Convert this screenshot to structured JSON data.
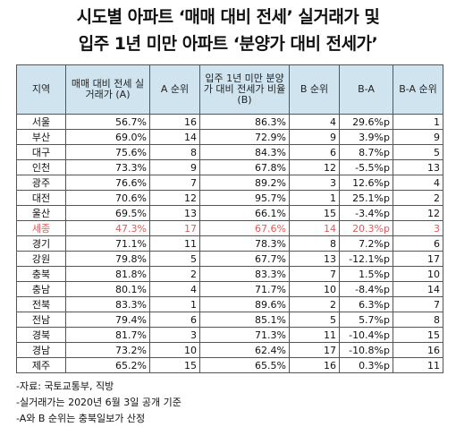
{
  "title": {
    "line1": "시도별 아파트 ‘매매 대비 전세’ 실거래가 및",
    "line2": "입주 1년 미만 아파트 ‘분양가 대비 전세가’"
  },
  "headers": [
    "지역",
    "매매 대비 전세 실거래가 (A)",
    "A 순위",
    "입주 1년 미만 분양가 대비 전세가 비율(B)",
    "B 순위",
    "B-A",
    "B-A 순위"
  ],
  "rows": [
    [
      "서울",
      "56.7%",
      "16",
      "86.3%",
      "4",
      "29.6%p",
      "1"
    ],
    [
      "부산",
      "69.0%",
      "14",
      "72.9%",
      "9",
      "3.9%p",
      "9"
    ],
    [
      "대구",
      "75.6%",
      "8",
      "84.3%",
      "6",
      "8.7%p",
      "5"
    ],
    [
      "인천",
      "73.3%",
      "9",
      "67.8%",
      "12",
      "-5.5%p",
      "13"
    ],
    [
      "광주",
      "76.6%",
      "7",
      "89.2%",
      "3",
      "12.6%p",
      "4"
    ],
    [
      "대전",
      "70.6%",
      "12",
      "95.7%",
      "1",
      "25.1%p",
      "2"
    ],
    [
      "울산",
      "69.5%",
      "13",
      "66.1%",
      "15",
      "-3.4%p",
      "12"
    ],
    [
      "세종",
      "47.3%",
      "17",
      "67.6%",
      "14",
      "20.3%p",
      "3"
    ],
    [
      "경기",
      "71.1%",
      "11",
      "78.3%",
      "8",
      "7.2%p",
      "6"
    ],
    [
      "강원",
      "79.8%",
      "5",
      "67.7%",
      "13",
      "-12.1%p",
      "17"
    ],
    [
      "충북",
      "81.8%",
      "2",
      "83.3%",
      "7",
      "1.5%p",
      "10"
    ],
    [
      "충남",
      "80.1%",
      "4",
      "71.7%",
      "10",
      "-8.4%p",
      "14"
    ],
    [
      "전북",
      "83.3%",
      "1",
      "89.6%",
      "2",
      "6.3%p",
      "7"
    ],
    [
      "전남",
      "79.4%",
      "6",
      "85.1%",
      "5",
      "5.7%p",
      "8"
    ],
    [
      "경북",
      "81.7%",
      "3",
      "71.3%",
      "11",
      "-10.4%p",
      "15"
    ],
    [
      "경남",
      "73.2%",
      "10",
      "62.4%",
      "17",
      "-10.8%p",
      "16"
    ],
    [
      "제주",
      "65.2%",
      "15",
      "65.5%",
      "16",
      "0.3%p",
      "11"
    ]
  ],
  "highlight_row": 7,
  "highlight_color": "#e05a5a",
  "header_bg": "#d0e4f0",
  "notes": [
    "-자료: 국토교통부, 직방",
    "-실거래가는 2020년 6월 3일 공개 기준",
    "-A와 B 순위는 충북일보가 산정"
  ]
}
